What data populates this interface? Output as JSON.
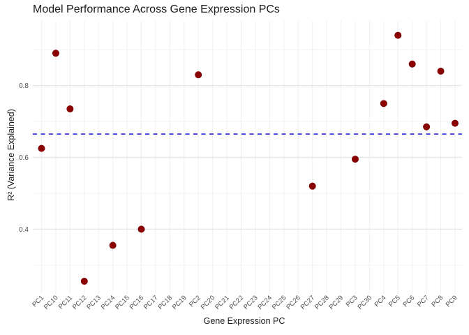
{
  "chart_data": {
    "type": "scatter",
    "title": "Model Performance Across Gene Expression PCs",
    "xlabel": "Gene Expression PC",
    "ylabel": "R² (Variance Explained)",
    "categories": [
      "PC1",
      "PC10",
      "PC11",
      "PC12",
      "PC13",
      "PC14",
      "PC15",
      "PC16",
      "PC17",
      "PC18",
      "PC19",
      "PC2",
      "PC20",
      "PC21",
      "PC22",
      "PC23",
      "PC24",
      "PC25",
      "PC26",
      "PC27",
      "PC28",
      "PC29",
      "PC3",
      "PC30",
      "PC4",
      "PC5",
      "PC6",
      "PC7",
      "PC8",
      "PC9"
    ],
    "points": [
      {
        "category": "PC1",
        "value": 0.625
      },
      {
        "category": "PC10",
        "value": 0.89
      },
      {
        "category": "PC11",
        "value": 0.735
      },
      {
        "category": "PC12",
        "value": 0.255
      },
      {
        "category": "PC14",
        "value": 0.355
      },
      {
        "category": "PC16",
        "value": 0.4
      },
      {
        "category": "PC2",
        "value": 0.83
      },
      {
        "category": "PC27",
        "value": 0.52
      },
      {
        "category": "PC3",
        "value": 0.595
      },
      {
        "category": "PC4",
        "value": 0.75
      },
      {
        "category": "PC5",
        "value": 0.94
      },
      {
        "category": "PC6",
        "value": 0.86
      },
      {
        "category": "PC7",
        "value": 0.685
      },
      {
        "category": "PC8",
        "value": 0.84
      },
      {
        "category": "PC9",
        "value": 0.695
      }
    ],
    "reference_line": {
      "value": 0.665,
      "style": "dashed",
      "color": "#2525e0"
    },
    "y_major_ticks": [
      0.4,
      0.6,
      0.8
    ],
    "y_minor_ticks": [
      0.3,
      0.5,
      0.7,
      0.9
    ],
    "ylim": [
      0.22,
      0.98
    ],
    "point_color": "#8B0000",
    "point_edge_color": "#750000",
    "grid_major_color": "#e6e6e6",
    "grid_minor_color": "#f0f0f0",
    "tick_label_color": "#4d4d4d",
    "legend": false,
    "grid": true
  }
}
